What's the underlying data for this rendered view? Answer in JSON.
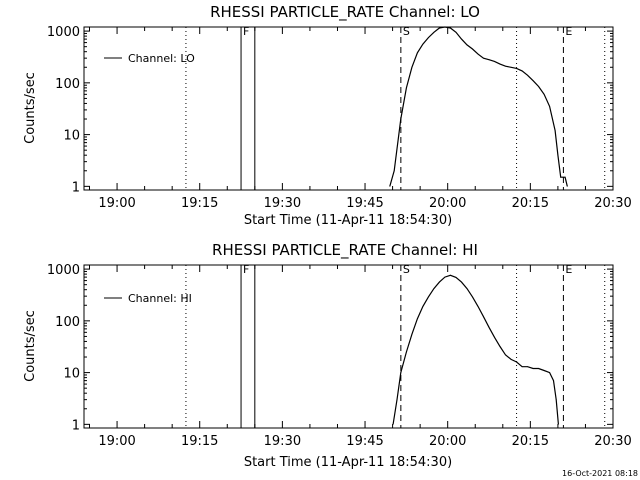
{
  "chart_data": [
    {
      "type": "line",
      "title": "RHESSI PARTICLE_RATE Channel: LO",
      "xlabel": "Start Time (11-Apr-11 18:54:30)",
      "ylabel": "Counts/sec",
      "yscale": "log",
      "ylim": [
        0.85,
        1200
      ],
      "xlim_minutes_after_start": [
        -0.5,
        95.5
      ],
      "x_tick_labels": [
        "19:00",
        "19:15",
        "19:30",
        "19:45",
        "20:00",
        "20:15",
        "20:30"
      ],
      "x_tick_minutes_after_start": [
        5.5,
        20.5,
        35.5,
        50.5,
        65.5,
        80.5,
        95.5
      ],
      "y_tick_labels": [
        "1",
        "10",
        "100",
        "1000"
      ],
      "y_tick_values": [
        1,
        10,
        100,
        1000
      ],
      "legend": "Channel: LO",
      "markers": [
        {
          "label": "F",
          "minute": 28.0,
          "style": "solid"
        },
        {
          "label": "",
          "minute": 30.5,
          "style": "solid"
        },
        {
          "label": "S",
          "minute": 57.0,
          "style": "dashed"
        },
        {
          "label": "E",
          "minute": 86.5,
          "style": "dashed"
        },
        {
          "label": "",
          "minute": 18.0,
          "style": "dotted"
        },
        {
          "label": "",
          "minute": 78.0,
          "style": "dotted"
        },
        {
          "label": "",
          "minute": 94.0,
          "style": "dotted"
        }
      ],
      "series": [
        {
          "name": "Channel: LO",
          "x_minutes": [
            55.0,
            55.8,
            57,
            58,
            59,
            60,
            61,
            62,
            63,
            64,
            65,
            66,
            67,
            68,
            69,
            70,
            71,
            72,
            73,
            74,
            75,
            76,
            77,
            78,
            79,
            80,
            81,
            82,
            83,
            84,
            85,
            85.5,
            86,
            86.3,
            86.8,
            87.2
          ],
          "values": [
            1,
            2,
            20,
            80,
            200,
            380,
            560,
            750,
            950,
            1150,
            1200,
            1150,
            950,
            700,
            540,
            450,
            360,
            300,
            280,
            260,
            230,
            210,
            200,
            190,
            170,
            140,
            110,
            85,
            60,
            35,
            12,
            4,
            1.5,
            1.5,
            1.5,
            1
          ]
        }
      ]
    },
    {
      "type": "line",
      "title": "RHESSI PARTICLE_RATE Channel: HI",
      "xlabel": "Start Time (11-Apr-11 18:54:30)",
      "ylabel": "Counts/sec",
      "yscale": "log",
      "ylim": [
        0.85,
        1200
      ],
      "xlim_minutes_after_start": [
        -0.5,
        95.5
      ],
      "x_tick_labels": [
        "19:00",
        "19:15",
        "19:30",
        "19:45",
        "20:00",
        "20:15",
        "20:30"
      ],
      "x_tick_minutes_after_start": [
        5.5,
        20.5,
        35.5,
        50.5,
        65.5,
        80.5,
        95.5
      ],
      "y_tick_labels": [
        "1",
        "10",
        "100",
        "1000"
      ],
      "y_tick_values": [
        1,
        10,
        100,
        1000
      ],
      "legend": "Channel: HI",
      "markers": [
        {
          "label": "F",
          "minute": 28.0,
          "style": "solid"
        },
        {
          "label": "",
          "minute": 30.5,
          "style": "solid"
        },
        {
          "label": "S",
          "minute": 57.0,
          "style": "dashed"
        },
        {
          "label": "E",
          "minute": 86.5,
          "style": "dashed"
        },
        {
          "label": "",
          "minute": 18.0,
          "style": "dotted"
        },
        {
          "label": "",
          "minute": 78.0,
          "style": "dotted"
        },
        {
          "label": "",
          "minute": 94.0,
          "style": "dotted"
        }
      ],
      "series": [
        {
          "name": "Channel: HI",
          "x_minutes": [
            55.6,
            56.3,
            57,
            58,
            59,
            60,
            61,
            62,
            63,
            64,
            65,
            66,
            67,
            68,
            69,
            70,
            71,
            72,
            73,
            74,
            75,
            76,
            77,
            78,
            79,
            80,
            81,
            82,
            83,
            84,
            84.7,
            85.2,
            85.6
          ],
          "values": [
            1,
            3,
            10,
            25,
            55,
            110,
            190,
            290,
            420,
            560,
            700,
            760,
            690,
            560,
            420,
            290,
            190,
            120,
            75,
            48,
            32,
            22,
            18,
            16,
            13,
            13,
            12,
            12,
            11,
            10,
            7,
            3,
            1
          ]
        }
      ]
    }
  ],
  "stamp": "16-Oct-2021 08:18"
}
